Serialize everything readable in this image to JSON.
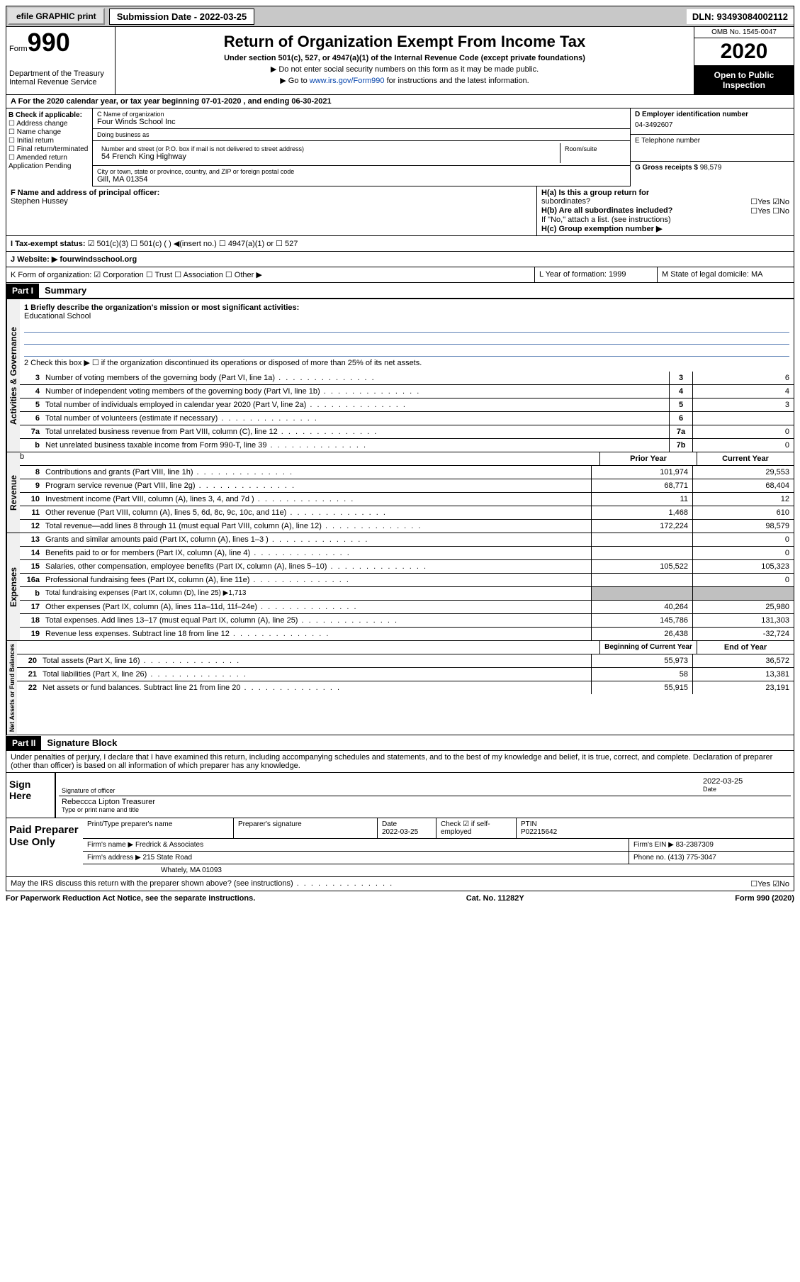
{
  "topbar": {
    "efile": "efile GRAPHIC print",
    "subdate_lbl": "Submission Date - ",
    "subdate": "2022-03-25",
    "dln_lbl": "DLN: ",
    "dln": "93493084002112"
  },
  "header": {
    "form_lbl": "Form",
    "form_no": "990",
    "dept": "Department of the Treasury\nInternal Revenue Service",
    "title": "Return of Organization Exempt From Income Tax",
    "sub1": "Under section 501(c), 527, or 4947(a)(1) of the Internal Revenue Code (except private foundations)",
    "sub2": "▶ Do not enter social security numbers on this form as it may be made public.",
    "sub3": "▶ Go to ",
    "link": "www.irs.gov/Form990",
    "sub3b": " for instructions and the latest information.",
    "omb": "OMB No. 1545-0047",
    "year": "2020",
    "insp": "Open to Public Inspection"
  },
  "rowA": "A For the 2020 calendar year, or tax year beginning 07-01-2020   , and ending 06-30-2021",
  "colB": {
    "lbl": "B Check if applicable:",
    "items": [
      "☐ Address change",
      "☐ Name change",
      "☐ Initial return",
      "☐ Final return/terminated",
      "☐ Amended return",
      "  Application Pending"
    ]
  },
  "colC": {
    "name_lbl": "C Name of organization",
    "name": "Four Winds School Inc",
    "dba_lbl": "Doing business as",
    "dba": "",
    "addr_lbl": "Number and street (or P.O. box if mail is not delivered to street address)",
    "room_lbl": "Room/suite",
    "addr": "54 French King Highway",
    "city_lbl": "City or town, state or province, country, and ZIP or foreign postal code",
    "city": "Gill, MA  01354"
  },
  "colD": {
    "ein_lbl": "D Employer identification number",
    "ein": "04-3492607",
    "tel_lbl": "E Telephone number",
    "tel": "",
    "gross_lbl": "G Gross receipts $ ",
    "gross": "98,579"
  },
  "rowF": {
    "lbl": "F  Name and address of principal officer:",
    "val": "Stephen Hussey"
  },
  "rowH": {
    "a": "H(a)  Is this a group return for",
    "a2": "subordinates?",
    "ay": "☐Yes ☑No",
    "b": "H(b)  Are all subordinates included?",
    "by": "☐Yes  ☐No",
    "bnote": "If \"No,\" attach a list. (see instructions)",
    "c": "H(c)  Group exemption number ▶"
  },
  "rowI": {
    "lbl": "I    Tax-exempt status:",
    "opts": "☑ 501(c)(3)    ☐ 501(c) (  ) ◀(insert no.)    ☐ 4947(a)(1) or   ☐ 527"
  },
  "rowJ": {
    "lbl": "J   Website: ▶ ",
    "val": "fourwindsschool.org"
  },
  "rowK": {
    "k": "K Form of organization:  ☑ Corporation  ☐ Trust  ☐ Association  ☐ Other ▶",
    "l": "L Year of formation: 1999",
    "m": "M State of legal domicile: MA"
  },
  "part1": {
    "hdr": "Part I",
    "title": "Summary",
    "tab": "Activities & Governance",
    "q1": "1  Briefly describe the organization's mission or most significant activities:",
    "mission": "Educational School",
    "q2": "2   Check this box ▶ ☐  if the organization discontinued its operations or disposed of more than 25% of its net assets.",
    "lines": [
      {
        "n": "3",
        "t": "Number of voting members of the governing body (Part VI, line 1a)",
        "nb": "3",
        "v": "6"
      },
      {
        "n": "4",
        "t": "Number of independent voting members of the governing body (Part VI, line 1b)",
        "nb": "4",
        "v": "4"
      },
      {
        "n": "5",
        "t": "Total number of individuals employed in calendar year 2020 (Part V, line 2a)",
        "nb": "5",
        "v": "3"
      },
      {
        "n": "6",
        "t": "Total number of volunteers (estimate if necessary)",
        "nb": "6",
        "v": ""
      },
      {
        "n": "7a",
        "t": "Total unrelated business revenue from Part VIII, column (C), line 12",
        "nb": "7a",
        "v": "0"
      },
      {
        "n": "b",
        "t": "Net unrelated business taxable income from Form 990-T, line 39",
        "nb": "7b",
        "v": "0"
      }
    ]
  },
  "revenue": {
    "tab": "Revenue",
    "hdr1": "Prior Year",
    "hdr2": "Current Year",
    "lines": [
      {
        "n": "8",
        "t": "Contributions and grants (Part VIII, line 1h)",
        "v1": "101,974",
        "v2": "29,553"
      },
      {
        "n": "9",
        "t": "Program service revenue (Part VIII, line 2g)",
        "v1": "68,771",
        "v2": "68,404"
      },
      {
        "n": "10",
        "t": "Investment income (Part VIII, column (A), lines 3, 4, and 7d )",
        "v1": "11",
        "v2": "12"
      },
      {
        "n": "11",
        "t": "Other revenue (Part VIII, column (A), lines 5, 6d, 8c, 9c, 10c, and 11e)",
        "v1": "1,468",
        "v2": "610"
      },
      {
        "n": "12",
        "t": "Total revenue—add lines 8 through 11 (must equal Part VIII, column (A), line 12)",
        "v1": "172,224",
        "v2": "98,579"
      }
    ]
  },
  "expenses": {
    "tab": "Expenses",
    "lines": [
      {
        "n": "13",
        "t": "Grants and similar amounts paid (Part IX, column (A), lines 1–3 )",
        "v1": "",
        "v2": "0"
      },
      {
        "n": "14",
        "t": "Benefits paid to or for members (Part IX, column (A), line 4)",
        "v1": "",
        "v2": "0"
      },
      {
        "n": "15",
        "t": "Salaries, other compensation, employee benefits (Part IX, column (A), lines 5–10)",
        "v1": "105,522",
        "v2": "105,323"
      },
      {
        "n": "16a",
        "t": "Professional fundraising fees (Part IX, column (A), line 11e)",
        "v1": "",
        "v2": "0"
      },
      {
        "n": "b",
        "t": "Total fundraising expenses (Part IX, column (D), line 25) ▶1,713",
        "v1": "",
        "v2": "",
        "sh": true,
        "small": true
      },
      {
        "n": "17",
        "t": "Other expenses (Part IX, column (A), lines 11a–11d, 11f–24e)",
        "v1": "40,264",
        "v2": "25,980"
      },
      {
        "n": "18",
        "t": "Total expenses. Add lines 13–17 (must equal Part IX, column (A), line 25)",
        "v1": "145,786",
        "v2": "131,303"
      },
      {
        "n": "19",
        "t": "Revenue less expenses. Subtract line 18 from line 12",
        "v1": "26,438",
        "v2": "-32,724"
      }
    ]
  },
  "netassets": {
    "tab": "Net Assets or Fund Balances",
    "hdr1": "Beginning of Current Year",
    "hdr2": "End of Year",
    "lines": [
      {
        "n": "20",
        "t": "Total assets (Part X, line 16)",
        "v1": "55,973",
        "v2": "36,572"
      },
      {
        "n": "21",
        "t": "Total liabilities (Part X, line 26)",
        "v1": "58",
        "v2": "13,381"
      },
      {
        "n": "22",
        "t": "Net assets or fund balances. Subtract line 21 from line 20",
        "v1": "55,915",
        "v2": "23,191"
      }
    ]
  },
  "part2": {
    "hdr": "Part II",
    "title": "Signature Block",
    "decl": "Under penalties of perjury, I declare that I have examined this return, including accompanying schedules and statements, and to the best of my knowledge and belief, it is true, correct, and complete. Declaration of preparer (other than officer) is based on all information of which preparer has any knowledge."
  },
  "sign": {
    "lbl": "Sign Here",
    "sig_lbl": "Signature of officer",
    "date": "2022-03-25",
    "date_lbl": "Date",
    "name": "Rebeccca Lipton Treasurer",
    "name_lbl": "Type or print name and title"
  },
  "prep": {
    "lbl": "Paid Preparer Use Only",
    "r1": {
      "c1": "Print/Type preparer's name",
      "c2": "Preparer's signature",
      "c3_lbl": "Date",
      "c3": "2022-03-25",
      "c4": "Check ☑ if self-employed",
      "c5_lbl": "PTIN",
      "c5": "P02215642"
    },
    "r2": {
      "c1_lbl": "Firm's name     ▶ ",
      "c1": "Fredrick & Associates",
      "c2_lbl": "Firm's EIN ▶ ",
      "c2": "83-2387309"
    },
    "r3": {
      "c1_lbl": "Firm's address ▶ ",
      "c1": "215 State Road",
      "c2_lbl": "Phone no. ",
      "c2": "(413) 775-3047"
    },
    "r4": {
      "c1": "Whately, MA  01093"
    }
  },
  "discuss": "May the IRS discuss this return with the preparer shown above? (see instructions)",
  "discuss_yn": "☐Yes  ☑No",
  "footer": {
    "l": "For Paperwork Reduction Act Notice, see the separate instructions.",
    "c": "Cat. No. 11282Y",
    "r": "Form 990 (2020)"
  }
}
